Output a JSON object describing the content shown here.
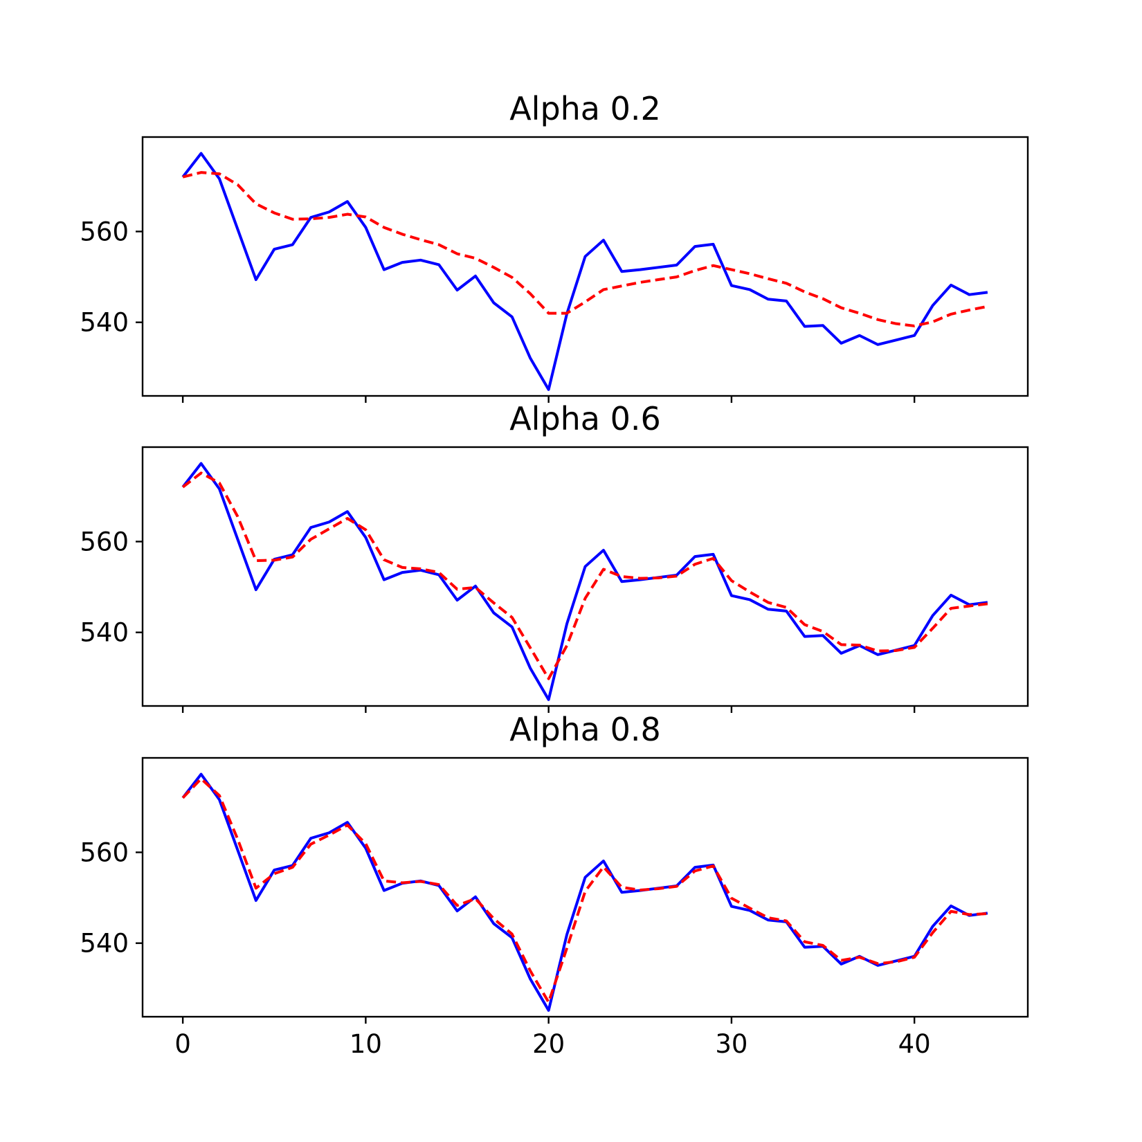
{
  "chart_data": [
    {
      "type": "line",
      "title": "Alpha 0.2",
      "xlabel": "",
      "ylabel": "",
      "xlim": [
        -2.2,
        46.2
      ],
      "ylim": [
        523.8,
        580.8
      ],
      "x_ticks": [
        0,
        10,
        20,
        30,
        40
      ],
      "x_tick_labels_visible": false,
      "y_ticks": [
        540,
        560
      ],
      "grid": false,
      "legend": "none",
      "series": [
        {
          "color": "#0000ff",
          "style": "solid",
          "x": [
            0,
            1,
            2,
            3,
            4,
            5,
            6,
            7,
            8,
            9,
            10,
            11,
            12,
            13,
            14,
            15,
            16,
            17,
            18,
            19,
            20,
            21,
            22,
            23,
            24,
            25,
            26,
            27,
            28,
            29,
            30,
            31,
            32,
            33,
            34,
            35,
            36,
            37,
            38,
            39,
            40,
            41,
            42,
            43,
            44
          ],
          "values": [
            572,
            577.2,
            571.6,
            560.5,
            549.4,
            556.1,
            557.1,
            563.1,
            564.3,
            566.6,
            560.9,
            551.6,
            553.2,
            553.7,
            552.7,
            547.1,
            550.2,
            544.3,
            541.2,
            532.1,
            525.2,
            541.9,
            554.5,
            558.1,
            551.2,
            551.6,
            552.1,
            552.6,
            556.7,
            557.2,
            548.1,
            547.2,
            545.1,
            544.7,
            539.1,
            539.3,
            535.4,
            537.1,
            535.1,
            536.1,
            537.1,
            543.7,
            548.2,
            546.1,
            546.6
          ]
        },
        {
          "color": "#ff0000",
          "style": "dashed",
          "x": [
            0,
            1,
            2,
            3,
            4,
            5,
            6,
            7,
            8,
            9,
            10,
            11,
            12,
            13,
            14,
            15,
            16,
            17,
            18,
            19,
            20,
            21,
            22,
            23,
            24,
            25,
            26,
            27,
            28,
            29,
            30,
            31,
            32,
            33,
            34,
            35,
            36,
            37,
            38,
            39,
            40,
            41,
            42,
            43,
            44
          ],
          "values": [
            572,
            573,
            572.7,
            570.3,
            566.1,
            564.1,
            562.7,
            562.8,
            563.1,
            563.8,
            563.2,
            560.9,
            559.4,
            558.2,
            557.1,
            555.1,
            554.1,
            552.1,
            549.9,
            546.3,
            542,
            542,
            544.5,
            547.2,
            548,
            548.8,
            549.4,
            550,
            551.4,
            552.5,
            551.6,
            550.7,
            549.6,
            548.6,
            546.7,
            545.2,
            543.2,
            542,
            540.6,
            539.7,
            539.2,
            540.1,
            541.8,
            542.7,
            543.5
          ]
        }
      ]
    },
    {
      "type": "line",
      "title": "Alpha 0.6",
      "xlabel": "",
      "ylabel": "",
      "xlim": [
        -2.2,
        46.2
      ],
      "ylim": [
        523.8,
        580.8
      ],
      "x_ticks": [
        0,
        10,
        20,
        30,
        40
      ],
      "x_tick_labels_visible": false,
      "y_ticks": [
        540,
        560
      ],
      "grid": false,
      "legend": "none",
      "series": [
        {
          "color": "#0000ff",
          "style": "solid",
          "x": [
            0,
            1,
            2,
            3,
            4,
            5,
            6,
            7,
            8,
            9,
            10,
            11,
            12,
            13,
            14,
            15,
            16,
            17,
            18,
            19,
            20,
            21,
            22,
            23,
            24,
            25,
            26,
            27,
            28,
            29,
            30,
            31,
            32,
            33,
            34,
            35,
            36,
            37,
            38,
            39,
            40,
            41,
            42,
            43,
            44
          ],
          "values": [
            572,
            577.2,
            571.6,
            560.5,
            549.4,
            556.1,
            557.1,
            563.1,
            564.3,
            566.6,
            560.9,
            551.6,
            553.2,
            553.7,
            552.7,
            547.1,
            550.2,
            544.3,
            541.2,
            532.1,
            525.2,
            541.9,
            554.5,
            558.1,
            551.2,
            551.6,
            552.1,
            552.6,
            556.7,
            557.2,
            548.1,
            547.2,
            545.1,
            544.7,
            539.1,
            539.3,
            535.4,
            537.1,
            535.1,
            536.1,
            537.1,
            543.7,
            548.2,
            546.1,
            546.6
          ]
        },
        {
          "color": "#ff0000",
          "style": "dashed",
          "x": [
            0,
            1,
            2,
            3,
            4,
            5,
            6,
            7,
            8,
            9,
            10,
            11,
            12,
            13,
            14,
            15,
            16,
            17,
            18,
            19,
            20,
            21,
            22,
            23,
            24,
            25,
            26,
            27,
            28,
            29,
            30,
            31,
            32,
            33,
            34,
            35,
            36,
            37,
            38,
            39,
            40,
            41,
            42,
            43,
            44
          ],
          "values": [
            572,
            575.1,
            572.9,
            565.5,
            555.8,
            555.9,
            556.6,
            560.5,
            562.8,
            565.1,
            562.6,
            556,
            554.3,
            554,
            553.2,
            549.5,
            549.9,
            546.5,
            543.3,
            536.6,
            529.8,
            537.1,
            547.5,
            553.9,
            552.3,
            551.9,
            552,
            552.4,
            555,
            556.3,
            551.4,
            548.9,
            546.6,
            545.5,
            541.7,
            540.2,
            537.3,
            537.2,
            535.9,
            536,
            536.7,
            540.9,
            545.3,
            545.8,
            546.3
          ]
        }
      ]
    },
    {
      "type": "line",
      "title": "Alpha 0.8",
      "xlabel": "",
      "ylabel": "",
      "xlim": [
        -2.2,
        46.2
      ],
      "ylim": [
        523.8,
        580.8
      ],
      "x_ticks": [
        0,
        10,
        20,
        30,
        40
      ],
      "x_tick_labels_visible": true,
      "y_ticks": [
        540,
        560
      ],
      "grid": false,
      "legend": "none",
      "series": [
        {
          "color": "#0000ff",
          "style": "solid",
          "x": [
            0,
            1,
            2,
            3,
            4,
            5,
            6,
            7,
            8,
            9,
            10,
            11,
            12,
            13,
            14,
            15,
            16,
            17,
            18,
            19,
            20,
            21,
            22,
            23,
            24,
            25,
            26,
            27,
            28,
            29,
            30,
            31,
            32,
            33,
            34,
            35,
            36,
            37,
            38,
            39,
            40,
            41,
            42,
            43,
            44
          ],
          "values": [
            572,
            577.2,
            571.6,
            560.5,
            549.4,
            556.1,
            557.1,
            563.1,
            564.3,
            566.6,
            560.9,
            551.6,
            553.2,
            553.7,
            552.7,
            547.1,
            550.2,
            544.3,
            541.2,
            532.1,
            525.2,
            541.9,
            554.5,
            558.1,
            551.2,
            551.6,
            552.1,
            552.6,
            556.7,
            557.2,
            548.1,
            547.2,
            545.1,
            544.7,
            539.1,
            539.3,
            535.4,
            537.1,
            535.1,
            536.1,
            537.1,
            543.7,
            548.2,
            546.1,
            546.6
          ]
        },
        {
          "color": "#ff0000",
          "style": "dashed",
          "x": [
            0,
            1,
            2,
            3,
            4,
            5,
            6,
            7,
            8,
            9,
            10,
            11,
            12,
            13,
            14,
            15,
            16,
            17,
            18,
            19,
            20,
            21,
            22,
            23,
            24,
            25,
            26,
            27,
            28,
            29,
            30,
            31,
            32,
            33,
            34,
            35,
            36,
            37,
            38,
            39,
            40,
            41,
            42,
            43,
            44
          ],
          "values": [
            572,
            576.2,
            572.5,
            562.9,
            552.1,
            555.3,
            556.7,
            561.8,
            563.8,
            566,
            561.9,
            553.7,
            553.3,
            553.6,
            552.9,
            548.3,
            549.8,
            545.4,
            542,
            533.9,
            527,
            538.9,
            551.4,
            556.8,
            552.3,
            551.7,
            552,
            552.5,
            555.9,
            557,
            549.9,
            547.7,
            545.6,
            544.9,
            540.3,
            539.5,
            536.2,
            536.9,
            535.5,
            535.9,
            536.9,
            542.3,
            547,
            546.3,
            546.5
          ]
        }
      ]
    }
  ]
}
